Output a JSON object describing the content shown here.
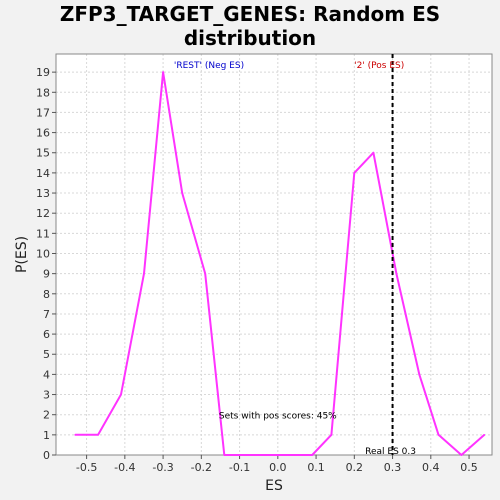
{
  "title_line1": "ZFP3_TARGET_GENES: Random ES",
  "title_line2": "distribution",
  "colors": {
    "curve": "#ff33ff",
    "rest_label": "#0000cc",
    "pos_label": "#cc0000",
    "background": "#f2f2f2",
    "plot_bg": "#ffffff",
    "grid": "#d8d8d8"
  },
  "chart_data": {
    "type": "line",
    "title": "ZFP3_TARGET_GENES: Random ES distribution",
    "xlabel": "ES",
    "ylabel": "P(ES)",
    "xlim": [
      -0.58,
      0.56
    ],
    "ylim": [
      0,
      19.9
    ],
    "grid": true,
    "x_ticks": [
      -0.5,
      -0.4,
      -0.3,
      -0.2,
      -0.1,
      0.0,
      0.1,
      0.2,
      0.3,
      0.4,
      0.5
    ],
    "x_tick_labels": [
      "-0.5",
      "-0.4",
      "-0.3",
      "-0.2",
      "-0.1",
      "0.0",
      "0.1",
      "0.2",
      "0.3",
      "0.4",
      "0.5"
    ],
    "y_ticks": [
      0,
      1,
      2,
      3,
      4,
      5,
      6,
      7,
      8,
      9,
      10,
      11,
      12,
      13,
      14,
      15,
      16,
      17,
      18,
      19
    ],
    "series": [
      {
        "x": [
          -0.53,
          -0.47,
          -0.41,
          -0.35,
          -0.3,
          -0.25,
          -0.19,
          -0.14,
          -0.08,
          -0.03,
          0.03,
          0.09,
          0.14,
          0.2,
          0.25,
          0.31,
          0.37,
          0.42,
          0.48,
          0.54
        ],
        "y": [
          1,
          1,
          3,
          9,
          19,
          13,
          9,
          0,
          0,
          0,
          0,
          0,
          1,
          14,
          15,
          9,
          4,
          1,
          0,
          1
        ]
      }
    ],
    "real_es": 0.3,
    "annotations": {
      "rest": "'REST' (Neg ES)",
      "pos": "'2' (Pos ES)",
      "sets_with_pos": "Sets with pos scores: 45%",
      "real_es": "Real ES 0.3"
    }
  }
}
